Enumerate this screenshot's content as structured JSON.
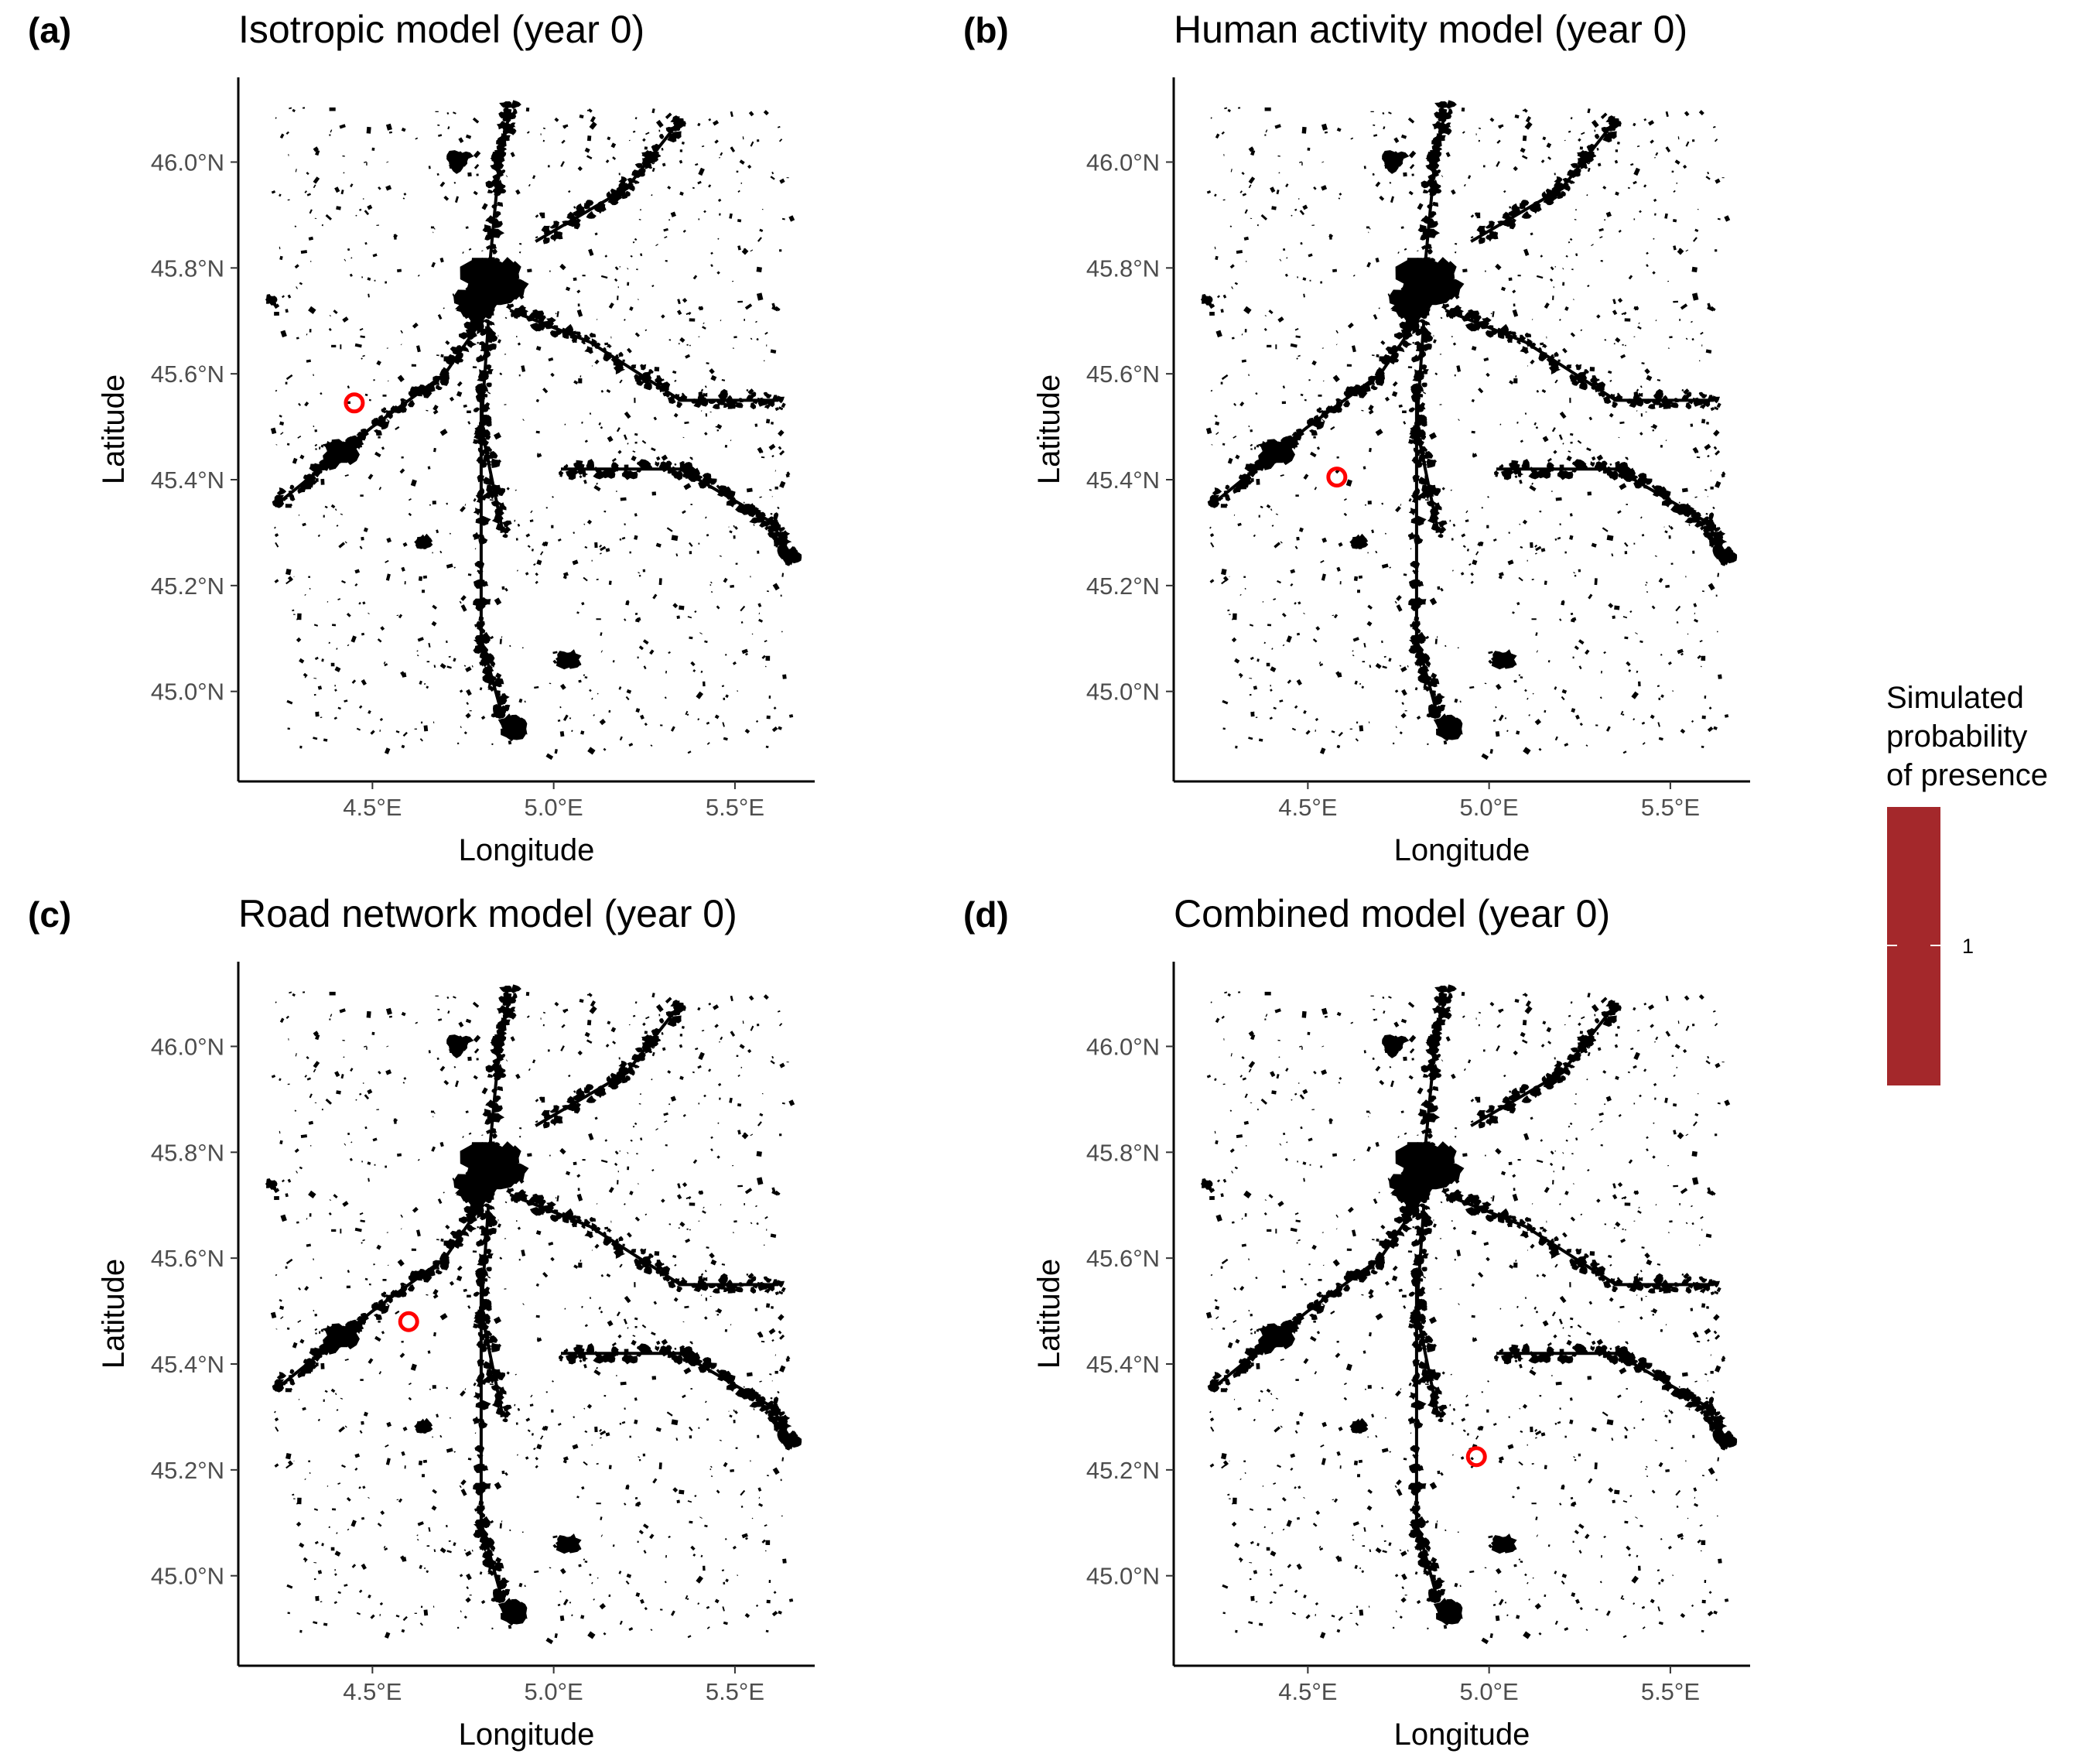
{
  "figure": {
    "legend": {
      "title_lines": [
        "Simulated",
        "probability",
        "of presence"
      ],
      "tick_label": "1",
      "color": "#a4282b"
    },
    "marker_color": "#ff0000",
    "map_color": "#000000"
  },
  "chart_data": [
    {
      "type": "scatter",
      "tag": "(a)",
      "title": "Isotropic model (year 0)",
      "xlabel": "Longitude",
      "ylabel": "Latitude",
      "xlim": [
        4.13,
        5.72
      ],
      "ylim": [
        44.83,
        46.16
      ],
      "xticks": [
        4.5,
        5.0,
        5.5
      ],
      "xtick_labels": [
        "4.5°E",
        "5.0°E",
        "5.5°E"
      ],
      "yticks": [
        45.0,
        45.2,
        45.4,
        45.6,
        45.8,
        46.0
      ],
      "ytick_labels": [
        "45.0°N",
        "45.2°N",
        "45.4°N",
        "45.6°N",
        "45.8°N",
        "46.0°N"
      ],
      "grid": false,
      "marker": {
        "lon": 4.45,
        "lat": 45.545
      }
    },
    {
      "type": "scatter",
      "tag": "(b)",
      "title": "Human activity model (year 0)",
      "xlabel": "Longitude",
      "ylabel": "Latitude",
      "xlim": [
        4.13,
        5.72
      ],
      "ylim": [
        44.83,
        46.16
      ],
      "xticks": [
        4.5,
        5.0,
        5.5
      ],
      "xtick_labels": [
        "4.5°E",
        "5.0°E",
        "5.5°E"
      ],
      "yticks": [
        45.0,
        45.2,
        45.4,
        45.6,
        45.8,
        46.0
      ],
      "ytick_labels": [
        "45.0°N",
        "45.2°N",
        "45.4°N",
        "45.6°N",
        "45.8°N",
        "46.0°N"
      ],
      "grid": false,
      "marker": {
        "lon": 4.58,
        "lat": 45.405
      }
    },
    {
      "type": "scatter",
      "tag": "(c)",
      "title": "Road network model (year 0)",
      "xlabel": "Longitude",
      "ylabel": "Latitude",
      "xlim": [
        4.13,
        5.72
      ],
      "ylim": [
        44.83,
        46.16
      ],
      "xticks": [
        4.5,
        5.0,
        5.5
      ],
      "xtick_labels": [
        "4.5°E",
        "5.0°E",
        "5.5°E"
      ],
      "yticks": [
        45.0,
        45.2,
        45.4,
        45.6,
        45.8,
        46.0
      ],
      "ytick_labels": [
        "45.0°N",
        "45.2°N",
        "45.4°N",
        "45.6°N",
        "45.8°N",
        "46.0°N"
      ],
      "grid": false,
      "marker": {
        "lon": 4.6,
        "lat": 45.48
      }
    },
    {
      "type": "scatter",
      "tag": "(d)",
      "title": "Combined model (year 0)",
      "xlabel": "Longitude",
      "ylabel": "Latitude",
      "xlim": [
        4.13,
        5.72
      ],
      "ylim": [
        44.83,
        46.16
      ],
      "xticks": [
        4.5,
        5.0,
        5.5
      ],
      "xtick_labels": [
        "4.5°E",
        "5.0°E",
        "5.5°E"
      ],
      "yticks": [
        45.0,
        45.2,
        45.4,
        45.6,
        45.8,
        46.0
      ],
      "ytick_labels": [
        "45.0°N",
        "45.2°N",
        "45.4°N",
        "45.6°N",
        "45.8°N",
        "46.0°N"
      ],
      "grid": false,
      "marker": {
        "lon": 4.965,
        "lat": 45.225
      }
    }
  ]
}
